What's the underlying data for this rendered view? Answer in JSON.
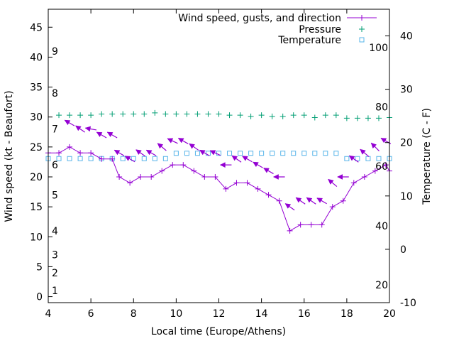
{
  "chart_data": {
    "type": "line",
    "xlabel": "Local time (Europe/Athens)",
    "ylabel": "Wind speed (kt - Beaufort)",
    "y2label": "Temperature (C - F)",
    "xlim": [
      4,
      20
    ],
    "ylim": [
      -1,
      48
    ],
    "y2lim": [
      -10,
      45
    ],
    "grid": false,
    "legend_position": "top-right",
    "x_ticks": [
      4,
      6,
      8,
      10,
      12,
      14,
      16,
      18,
      20
    ],
    "y_ticks": [
      0,
      5,
      10,
      15,
      20,
      25,
      30,
      35,
      40,
      45
    ],
    "y2_ticks": [
      -10,
      0,
      10,
      20,
      30,
      40
    ],
    "fahrenheit_labels": [
      {
        "value": 20,
        "f": -6.7
      },
      {
        "value": 40,
        "f": 4.4
      },
      {
        "value": 60,
        "f": 15.6
      },
      {
        "value": 80,
        "f": 26.7
      },
      {
        "value": 100,
        "f": 37.8
      }
    ],
    "beaufort_labels": [
      {
        "value": 1,
        "kt": 1
      },
      {
        "value": 2,
        "kt": 4
      },
      {
        "value": 3,
        "kt": 7
      },
      {
        "value": 4,
        "kt": 11
      },
      {
        "value": 5,
        "kt": 17
      },
      {
        "value": 6,
        "kt": 22
      },
      {
        "value": 7,
        "kt": 28
      },
      {
        "value": 8,
        "kt": 34
      },
      {
        "value": 9,
        "kt": 41
      }
    ],
    "series": [
      {
        "name": "Wind speed, gusts, and direction",
        "color": "#9400d3",
        "axis": "y",
        "x": [
          4,
          4.5,
          5,
          5.5,
          6,
          6.5,
          7,
          7.33,
          7.83,
          8.33,
          8.83,
          9.33,
          9.83,
          10.33,
          10.83,
          11.33,
          11.83,
          12.33,
          12.83,
          13.33,
          13.83,
          14.33,
          14.83,
          15.33,
          15.83,
          16.33,
          16.83,
          17.33,
          17.83,
          18.33,
          18.83,
          19.33,
          19.83,
          20
        ],
        "values": [
          24,
          24,
          25,
          24,
          24,
          23,
          23,
          20,
          19,
          20,
          20,
          21,
          22,
          22,
          21,
          20,
          20,
          18,
          19,
          19,
          18,
          17,
          16,
          11,
          12,
          12,
          12,
          15,
          16,
          19,
          20,
          21,
          22,
          21
        ]
      },
      {
        "name": "Pressure",
        "color": "#009e73",
        "axis": "y",
        "x": [
          4.5,
          5,
          5.5,
          6,
          6.5,
          7,
          7.5,
          8,
          8.5,
          9,
          9.5,
          10,
          10.5,
          11,
          11.5,
          12,
          12.5,
          13,
          13.5,
          14,
          14.5,
          15,
          15.5,
          16,
          16.5,
          17,
          17.5,
          18,
          18.5,
          19,
          19.5,
          20
        ],
        "values": [
          30.3,
          30.3,
          30.3,
          30.3,
          30.5,
          30.5,
          30.5,
          30.5,
          30.5,
          30.7,
          30.5,
          30.5,
          30.5,
          30.5,
          30.5,
          30.5,
          30.3,
          30.3,
          30.1,
          30.3,
          30.1,
          30.1,
          30.3,
          30.3,
          29.9,
          30.3,
          30.3,
          29.8,
          29.8,
          29.8,
          29.8,
          29.9
        ]
      },
      {
        "name": "Temperature",
        "color": "#56b4e9",
        "axis": "y2",
        "x": [
          4,
          4.5,
          5,
          5.5,
          6,
          6.5,
          7,
          7.5,
          8,
          8.5,
          9,
          9.5,
          10,
          10.5,
          11,
          11.5,
          12,
          12.5,
          13,
          13.5,
          14,
          14.5,
          15,
          15.5,
          16,
          16.5,
          17,
          17.5,
          18,
          18.5,
          19,
          19.5,
          20
        ],
        "values": [
          17,
          17,
          17,
          17,
          17,
          17,
          17,
          17,
          17,
          17,
          17,
          17,
          18,
          18,
          18,
          18,
          18,
          18,
          18,
          18,
          18,
          18,
          18,
          18,
          18,
          18,
          18,
          18,
          17,
          17,
          17,
          17,
          17
        ]
      }
    ],
    "wind_arrows": [
      {
        "x": 5.0,
        "y": 29.0,
        "dir_deg": 30
      },
      {
        "x": 5.5,
        "y": 28.0,
        "dir_deg": 35
      },
      {
        "x": 6.0,
        "y": 28.0,
        "dir_deg": 10
      },
      {
        "x": 6.5,
        "y": 27.0,
        "dir_deg": 30
      },
      {
        "x": 7.0,
        "y": 27.0,
        "dir_deg": 30
      },
      {
        "x": 7.33,
        "y": 24.0,
        "dir_deg": 30
      },
      {
        "x": 7.83,
        "y": 23.0,
        "dir_deg": 30
      },
      {
        "x": 8.33,
        "y": 24.0,
        "dir_deg": 35
      },
      {
        "x": 8.83,
        "y": 24.0,
        "dir_deg": 30
      },
      {
        "x": 9.33,
        "y": 25.0,
        "dir_deg": 40
      },
      {
        "x": 9.83,
        "y": 26.0,
        "dir_deg": 25
      },
      {
        "x": 10.33,
        "y": 26.0,
        "dir_deg": 30
      },
      {
        "x": 10.83,
        "y": 25.0,
        "dir_deg": 35
      },
      {
        "x": 11.33,
        "y": 24.0,
        "dir_deg": 30
      },
      {
        "x": 11.83,
        "y": 24.0,
        "dir_deg": 25
      },
      {
        "x": 12.33,
        "y": 22.0,
        "dir_deg": 0
      },
      {
        "x": 12.83,
        "y": 23.0,
        "dir_deg": 35
      },
      {
        "x": 13.33,
        "y": 23.0,
        "dir_deg": 30
      },
      {
        "x": 13.83,
        "y": 22.0,
        "dir_deg": 30
      },
      {
        "x": 14.33,
        "y": 21.0,
        "dir_deg": 30
      },
      {
        "x": 14.83,
        "y": 20.0,
        "dir_deg": 0
      },
      {
        "x": 15.33,
        "y": 15.0,
        "dir_deg": 35
      },
      {
        "x": 15.83,
        "y": 16.0,
        "dir_deg": 35
      },
      {
        "x": 16.33,
        "y": 16.0,
        "dir_deg": 35
      },
      {
        "x": 16.83,
        "y": 16.0,
        "dir_deg": 30
      },
      {
        "x": 17.33,
        "y": 19.0,
        "dir_deg": 40
      },
      {
        "x": 17.83,
        "y": 20.0,
        "dir_deg": 0
      },
      {
        "x": 18.33,
        "y": 23.0,
        "dir_deg": 35
      },
      {
        "x": 18.83,
        "y": 24.0,
        "dir_deg": 40
      },
      {
        "x": 19.33,
        "y": 25.0,
        "dir_deg": 45
      },
      {
        "x": 19.83,
        "y": 26.0,
        "dir_deg": 30
      }
    ]
  }
}
